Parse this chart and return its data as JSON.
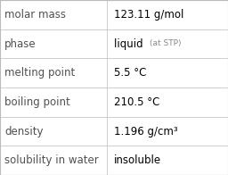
{
  "rows": [
    {
      "label": "molar mass",
      "value": "123.11 g/mol",
      "value_extra": null
    },
    {
      "label": "phase",
      "value": "liquid",
      "value_extra": "(at STP)"
    },
    {
      "label": "melting point",
      "value": "5.5 °C",
      "value_extra": null
    },
    {
      "label": "boiling point",
      "value": "210.5 °C",
      "value_extra": null
    },
    {
      "label": "density",
      "value": "1.196 g/cm³",
      "value_extra": null
    },
    {
      "label": "solubility in water",
      "value": "insoluble",
      "value_extra": null
    }
  ],
  "col_split": 0.47,
  "background_color": "#ffffff",
  "grid_color": "#bbbbbb",
  "label_color": "#505050",
  "value_color": "#000000",
  "extra_color": "#888888",
  "label_fontsize": 8.5,
  "value_fontsize": 8.5,
  "extra_fontsize": 6.5,
  "fig_width": 2.56,
  "fig_height": 1.96,
  "dpi": 100
}
